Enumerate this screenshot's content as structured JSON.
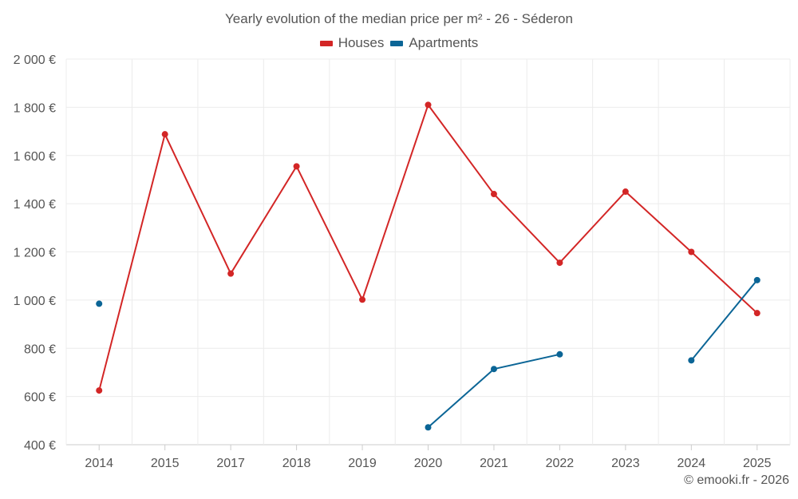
{
  "chart_data": {
    "type": "line",
    "title": "Yearly evolution of the median price per m² - 26 - Séderon",
    "categories": [
      "2014",
      "2015",
      "2017",
      "2018",
      "2019",
      "2020",
      "2021",
      "2022",
      "2023",
      "2024",
      "2025"
    ],
    "series": [
      {
        "name": "Houses",
        "color": "#d32626",
        "values": [
          625,
          1688,
          1110,
          1555,
          1002,
          1810,
          1440,
          1155,
          1450,
          1200,
          946
        ]
      },
      {
        "name": "Apartments",
        "color": "#0b6596",
        "values": [
          985,
          null,
          null,
          null,
          null,
          472,
          714,
          775,
          null,
          750,
          1083
        ]
      }
    ],
    "y_ticks": [
      "400 €",
      "600 €",
      "800 €",
      "1 000 €",
      "1 200 €",
      "1 400 €",
      "1 600 €",
      "1 800 €",
      "2 000 €"
    ],
    "ylim": [
      400,
      2000
    ],
    "xlabel": "",
    "ylabel": "",
    "grid": true,
    "legend": "top-center"
  },
  "credit": "© emooki.fr - 2026"
}
